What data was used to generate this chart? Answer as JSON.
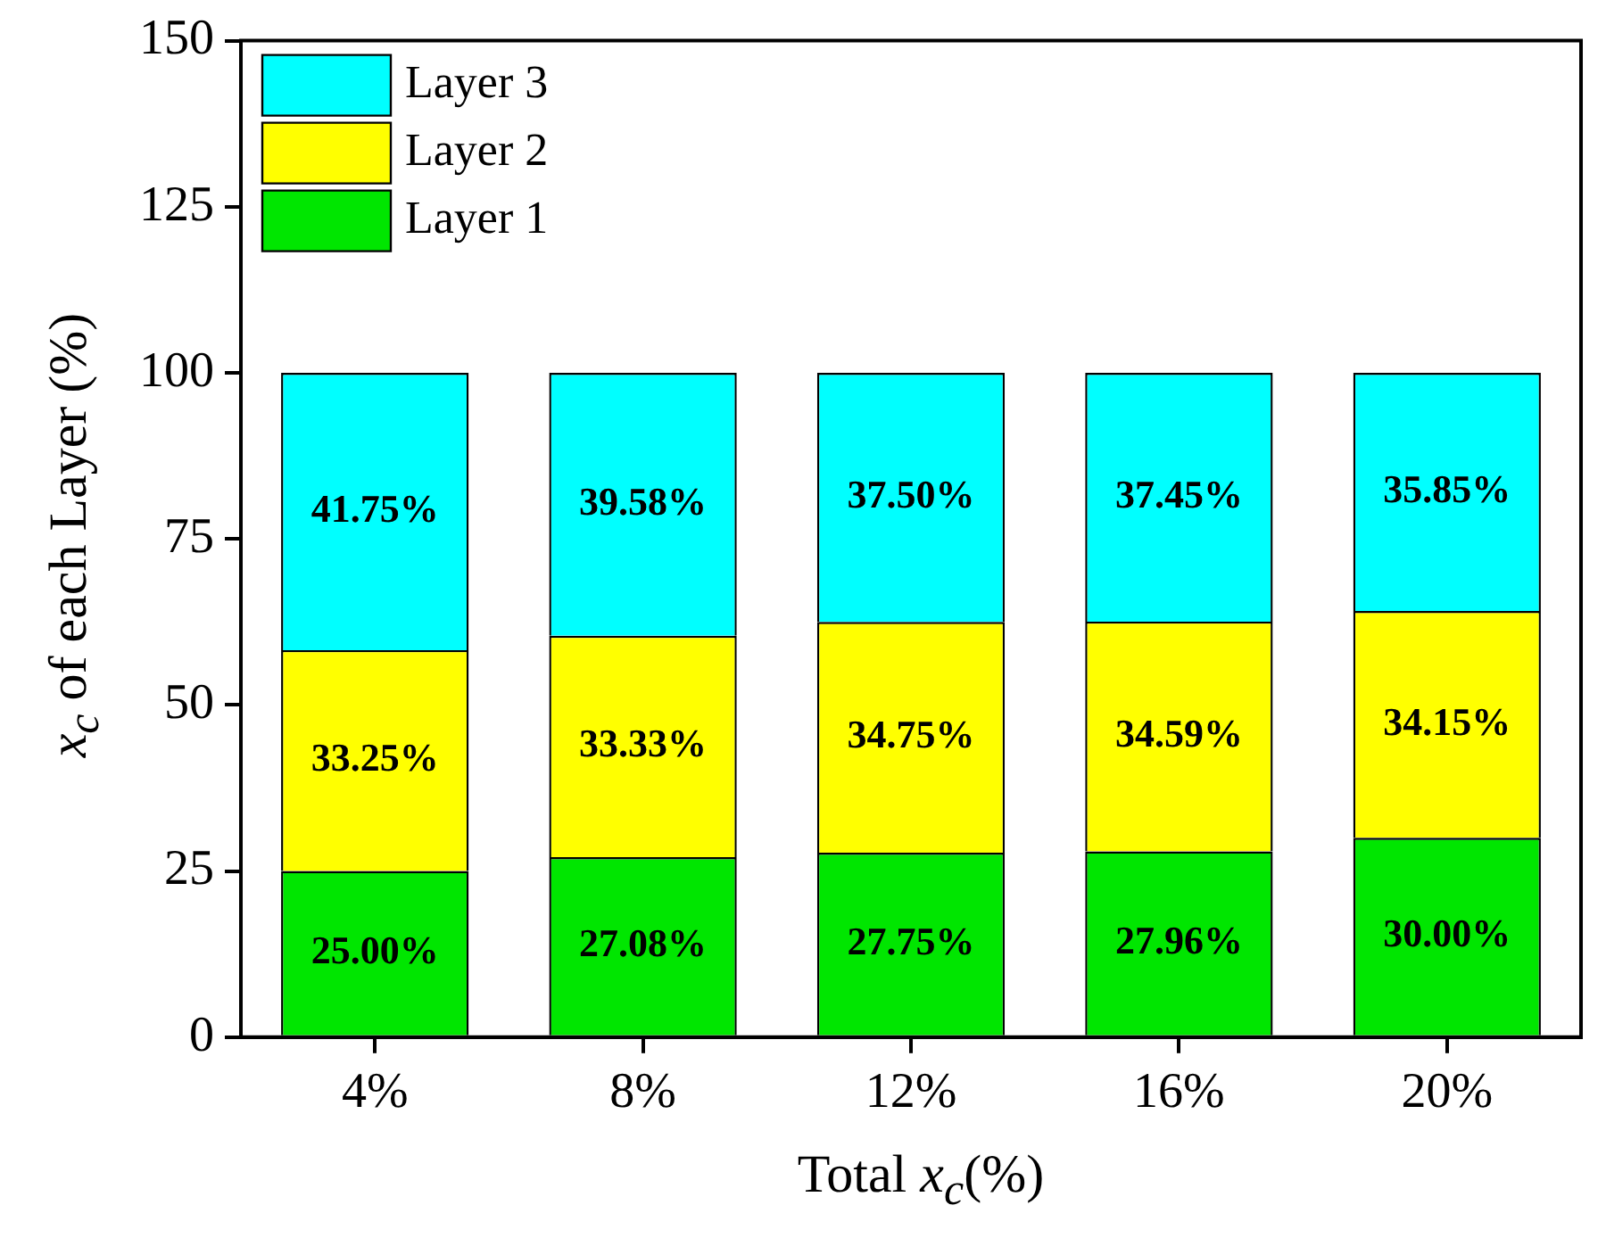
{
  "chart_data": {
    "type": "bar",
    "stacked": true,
    "xlabel": "Total x$_{c}$(%)",
    "ylabel": "x$_{c}$ of each Layer (%)",
    "categories": [
      "4%",
      "8%",
      "12%",
      "16%",
      "20%"
    ],
    "series": [
      {
        "name": "Layer 1",
        "color": "#00e600",
        "values": [
          25.0,
          27.08,
          27.75,
          27.96,
          30.0
        ],
        "value_labels": [
          "25.00%",
          "27.08%",
          "27.75%",
          "27.96%",
          "30.00%"
        ]
      },
      {
        "name": "Layer 2",
        "color": "#ffff00",
        "values": [
          33.25,
          33.33,
          34.75,
          34.59,
          34.15
        ],
        "value_labels": [
          "33.25%",
          "33.33%",
          "34.75%",
          "34.59%",
          "34.15%"
        ]
      },
      {
        "name": "Layer 3",
        "color": "#00ffff",
        "values": [
          41.75,
          39.58,
          37.5,
          37.45,
          35.85
        ],
        "value_labels": [
          "41.75%",
          "39.58%",
          "37.50%",
          "37.45%",
          "35.85%"
        ]
      }
    ],
    "ylim": [
      0,
      150
    ],
    "yticks": [
      0,
      25,
      50,
      75,
      100,
      125,
      150
    ],
    "legend": "top left"
  }
}
